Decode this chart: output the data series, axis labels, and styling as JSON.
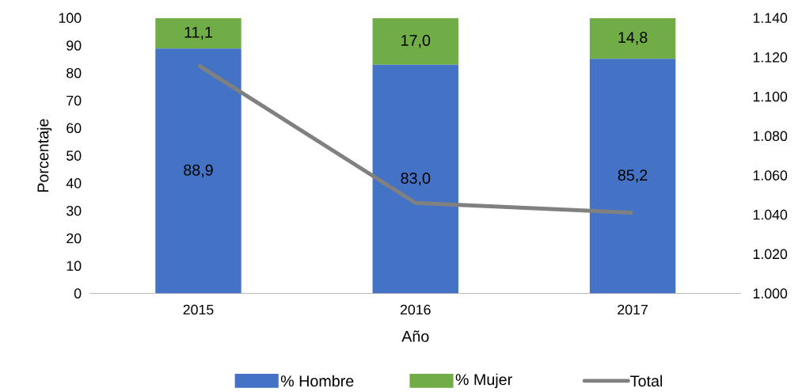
{
  "chart_data": {
    "type": "bar",
    "stacked": true,
    "xlabel": "Año",
    "ylabel": "Porcentaje",
    "categories": [
      "2015",
      "2016",
      "2017"
    ],
    "series": [
      {
        "name": "% Hombre",
        "color": "#4472c4",
        "values": [
          88.9,
          83.0,
          85.2
        ],
        "value_labels": [
          "88,9",
          "83,0",
          "85,2"
        ]
      },
      {
        "name": "% Mujer",
        "color": "#70ad47",
        "values": [
          11.1,
          17.0,
          14.8
        ],
        "value_labels": [
          "11,1",
          "17,0",
          "14,8"
        ]
      },
      {
        "name": "Total",
        "type": "line",
        "axis": "y2",
        "color": "#808080",
        "values": [
          1116,
          1046,
          1041
        ]
      }
    ],
    "ylim": [
      0,
      100
    ],
    "yticks": [
      0,
      10,
      20,
      30,
      40,
      50,
      60,
      70,
      80,
      90,
      100
    ],
    "y2lim": [
      1000,
      1140
    ],
    "y2ticks": [
      {
        "value": 1000,
        "label": "1.000"
      },
      {
        "value": 1020,
        "label": "1.020"
      },
      {
        "value": 1040,
        "label": "1.040"
      },
      {
        "value": 1060,
        "label": "1.060"
      },
      {
        "value": 1080,
        "label": "1.080"
      },
      {
        "value": 1100,
        "label": "1.100"
      },
      {
        "value": 1120,
        "label": "1.120"
      },
      {
        "value": 1140,
        "label": "1.140"
      }
    ],
    "legend": "bottom",
    "grid": false
  }
}
